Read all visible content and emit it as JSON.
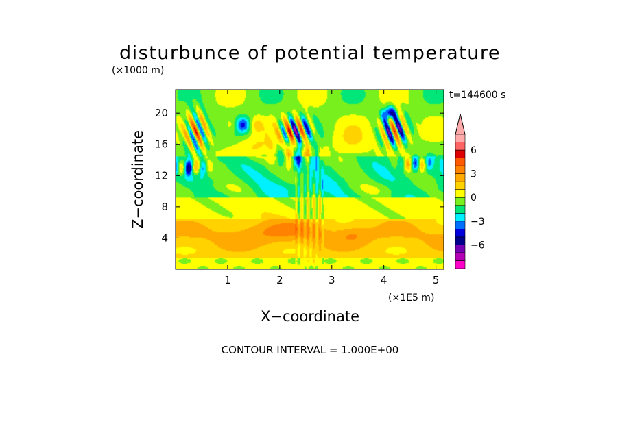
{
  "chart_data": {
    "type": "heatmap",
    "title": "disturbunce of potential temperature",
    "y_unit": "(×1000 m)",
    "x_unit": "(×1E5 m)",
    "xlabel": "X−coordinate",
    "ylabel": "Z−coordinate",
    "time_label": "t=144600 s",
    "footer": "CONTOUR INTERVAL = 1.000E+00",
    "xlim": [
      0,
      5.15
    ],
    "ylim": [
      0,
      23
    ],
    "x_ticks": [
      1,
      2,
      3,
      4,
      5
    ],
    "y_ticks": [
      4,
      8,
      12,
      16,
      20
    ],
    "colorbar": {
      "levels": [
        -9,
        -8,
        -7,
        -6,
        -5,
        -4,
        -3,
        -2,
        -1,
        0,
        1,
        2,
        3,
        4,
        5,
        6,
        7,
        8
      ],
      "labels": [
        "6",
        "3",
        "0",
        "−3",
        "−6"
      ],
      "label_values": [
        6,
        3,
        0,
        -3,
        -6
      ],
      "colors": [
        "#ff00c8",
        "#b400b4",
        "#7800b4",
        "#00008c",
        "#0000dc",
        "#006eff",
        "#00f0ff",
        "#00e678",
        "#78f01e",
        "#ffff00",
        "#ffd200",
        "#ffaa00",
        "#ff8200",
        "#ff5a00",
        "#dc0000",
        "#ff6464",
        "#ffaaaa"
      ]
    },
    "features": [
      {
        "x": 0.4,
        "z": 17.5,
        "a": 5.0,
        "sx": 0.22,
        "sz": 2.6,
        "kx": 28,
        "kz": 1.8
      },
      {
        "x": 0.25,
        "z": 13.0,
        "a": -4.0,
        "sx": 0.35,
        "sz": 0.9,
        "kx": 22,
        "kz": 0
      },
      {
        "x": 1.3,
        "z": 18.5,
        "a": -3.5,
        "sx": 0.3,
        "sz": 1.0,
        "kx": 10,
        "kz": 0
      },
      {
        "x": 2.3,
        "z": 17.8,
        "a": -7.0,
        "sx": 0.3,
        "sz": 1.6,
        "kx": 26,
        "kz": 1.5
      },
      {
        "x": 2.35,
        "z": 14.5,
        "a": -3.0,
        "sx": 0.4,
        "sz": 1.5,
        "kx": 18,
        "kz": 0
      },
      {
        "x": 4.2,
        "z": 17.8,
        "a": 6.5,
        "sx": 0.25,
        "sz": 2.0,
        "kx": 26,
        "kz": 1.5
      },
      {
        "x": 4.1,
        "z": 20.0,
        "a": -5.0,
        "sx": 0.12,
        "sz": 0.8,
        "kx": 0,
        "kz": 0
      },
      {
        "x": 4.6,
        "z": 13.5,
        "a": -3.5,
        "sx": 0.3,
        "sz": 0.9,
        "kx": 22,
        "kz": 0
      },
      {
        "x": 1.6,
        "z": 15.5,
        "a": 1.5,
        "sx": 0.5,
        "sz": 1.6,
        "kx": 0,
        "kz": 0
      },
      {
        "x": 3.4,
        "z": 16.0,
        "a": 1.2,
        "sx": 0.4,
        "sz": 2.5,
        "kx": 0,
        "kz": 0
      },
      {
        "x": 2.0,
        "z": 5.0,
        "a": 1.2,
        "sx": 0.8,
        "sz": 1.5,
        "kx": 0,
        "kz": 0
      },
      {
        "x": 3.4,
        "z": 4.5,
        "a": 1.0,
        "sx": 0.3,
        "sz": 1.0,
        "kx": 0,
        "kz": 0
      }
    ]
  }
}
